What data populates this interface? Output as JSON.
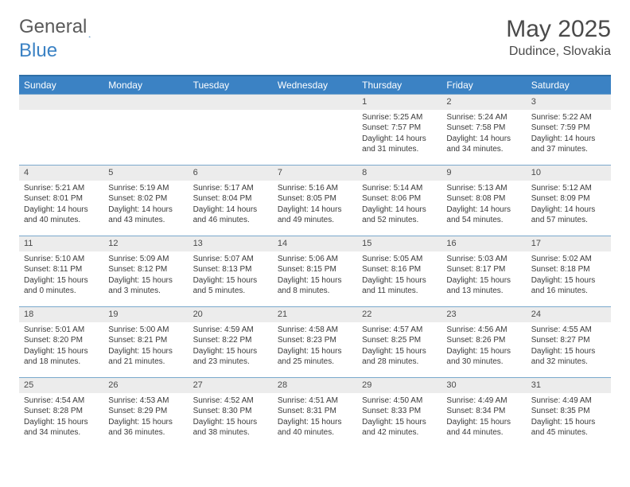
{
  "logo": {
    "text1": "General",
    "text2": "Blue"
  },
  "title": "May 2025",
  "location": "Dudince, Slovakia",
  "colors": {
    "header_blue": "#3b82c4",
    "row_divider": "#7aa8cc",
    "daynum_bg": "#ececec",
    "text": "#3a3a3a"
  },
  "dow": [
    "Sunday",
    "Monday",
    "Tuesday",
    "Wednesday",
    "Thursday",
    "Friday",
    "Saturday"
  ],
  "weeks": [
    [
      {
        "n": "",
        "lines": []
      },
      {
        "n": "",
        "lines": []
      },
      {
        "n": "",
        "lines": []
      },
      {
        "n": "",
        "lines": []
      },
      {
        "n": "1",
        "lines": [
          "Sunrise: 5:25 AM",
          "Sunset: 7:57 PM",
          "Daylight: 14 hours",
          "and 31 minutes."
        ]
      },
      {
        "n": "2",
        "lines": [
          "Sunrise: 5:24 AM",
          "Sunset: 7:58 PM",
          "Daylight: 14 hours",
          "and 34 minutes."
        ]
      },
      {
        "n": "3",
        "lines": [
          "Sunrise: 5:22 AM",
          "Sunset: 7:59 PM",
          "Daylight: 14 hours",
          "and 37 minutes."
        ]
      }
    ],
    [
      {
        "n": "4",
        "lines": [
          "Sunrise: 5:21 AM",
          "Sunset: 8:01 PM",
          "Daylight: 14 hours",
          "and 40 minutes."
        ]
      },
      {
        "n": "5",
        "lines": [
          "Sunrise: 5:19 AM",
          "Sunset: 8:02 PM",
          "Daylight: 14 hours",
          "and 43 minutes."
        ]
      },
      {
        "n": "6",
        "lines": [
          "Sunrise: 5:17 AM",
          "Sunset: 8:04 PM",
          "Daylight: 14 hours",
          "and 46 minutes."
        ]
      },
      {
        "n": "7",
        "lines": [
          "Sunrise: 5:16 AM",
          "Sunset: 8:05 PM",
          "Daylight: 14 hours",
          "and 49 minutes."
        ]
      },
      {
        "n": "8",
        "lines": [
          "Sunrise: 5:14 AM",
          "Sunset: 8:06 PM",
          "Daylight: 14 hours",
          "and 52 minutes."
        ]
      },
      {
        "n": "9",
        "lines": [
          "Sunrise: 5:13 AM",
          "Sunset: 8:08 PM",
          "Daylight: 14 hours",
          "and 54 minutes."
        ]
      },
      {
        "n": "10",
        "lines": [
          "Sunrise: 5:12 AM",
          "Sunset: 8:09 PM",
          "Daylight: 14 hours",
          "and 57 minutes."
        ]
      }
    ],
    [
      {
        "n": "11",
        "lines": [
          "Sunrise: 5:10 AM",
          "Sunset: 8:11 PM",
          "Daylight: 15 hours",
          "and 0 minutes."
        ]
      },
      {
        "n": "12",
        "lines": [
          "Sunrise: 5:09 AM",
          "Sunset: 8:12 PM",
          "Daylight: 15 hours",
          "and 3 minutes."
        ]
      },
      {
        "n": "13",
        "lines": [
          "Sunrise: 5:07 AM",
          "Sunset: 8:13 PM",
          "Daylight: 15 hours",
          "and 5 minutes."
        ]
      },
      {
        "n": "14",
        "lines": [
          "Sunrise: 5:06 AM",
          "Sunset: 8:15 PM",
          "Daylight: 15 hours",
          "and 8 minutes."
        ]
      },
      {
        "n": "15",
        "lines": [
          "Sunrise: 5:05 AM",
          "Sunset: 8:16 PM",
          "Daylight: 15 hours",
          "and 11 minutes."
        ]
      },
      {
        "n": "16",
        "lines": [
          "Sunrise: 5:03 AM",
          "Sunset: 8:17 PM",
          "Daylight: 15 hours",
          "and 13 minutes."
        ]
      },
      {
        "n": "17",
        "lines": [
          "Sunrise: 5:02 AM",
          "Sunset: 8:18 PM",
          "Daylight: 15 hours",
          "and 16 minutes."
        ]
      }
    ],
    [
      {
        "n": "18",
        "lines": [
          "Sunrise: 5:01 AM",
          "Sunset: 8:20 PM",
          "Daylight: 15 hours",
          "and 18 minutes."
        ]
      },
      {
        "n": "19",
        "lines": [
          "Sunrise: 5:00 AM",
          "Sunset: 8:21 PM",
          "Daylight: 15 hours",
          "and 21 minutes."
        ]
      },
      {
        "n": "20",
        "lines": [
          "Sunrise: 4:59 AM",
          "Sunset: 8:22 PM",
          "Daylight: 15 hours",
          "and 23 minutes."
        ]
      },
      {
        "n": "21",
        "lines": [
          "Sunrise: 4:58 AM",
          "Sunset: 8:23 PM",
          "Daylight: 15 hours",
          "and 25 minutes."
        ]
      },
      {
        "n": "22",
        "lines": [
          "Sunrise: 4:57 AM",
          "Sunset: 8:25 PM",
          "Daylight: 15 hours",
          "and 28 minutes."
        ]
      },
      {
        "n": "23",
        "lines": [
          "Sunrise: 4:56 AM",
          "Sunset: 8:26 PM",
          "Daylight: 15 hours",
          "and 30 minutes."
        ]
      },
      {
        "n": "24",
        "lines": [
          "Sunrise: 4:55 AM",
          "Sunset: 8:27 PM",
          "Daylight: 15 hours",
          "and 32 minutes."
        ]
      }
    ],
    [
      {
        "n": "25",
        "lines": [
          "Sunrise: 4:54 AM",
          "Sunset: 8:28 PM",
          "Daylight: 15 hours",
          "and 34 minutes."
        ]
      },
      {
        "n": "26",
        "lines": [
          "Sunrise: 4:53 AM",
          "Sunset: 8:29 PM",
          "Daylight: 15 hours",
          "and 36 minutes."
        ]
      },
      {
        "n": "27",
        "lines": [
          "Sunrise: 4:52 AM",
          "Sunset: 8:30 PM",
          "Daylight: 15 hours",
          "and 38 minutes."
        ]
      },
      {
        "n": "28",
        "lines": [
          "Sunrise: 4:51 AM",
          "Sunset: 8:31 PM",
          "Daylight: 15 hours",
          "and 40 minutes."
        ]
      },
      {
        "n": "29",
        "lines": [
          "Sunrise: 4:50 AM",
          "Sunset: 8:33 PM",
          "Daylight: 15 hours",
          "and 42 minutes."
        ]
      },
      {
        "n": "30",
        "lines": [
          "Sunrise: 4:49 AM",
          "Sunset: 8:34 PM",
          "Daylight: 15 hours",
          "and 44 minutes."
        ]
      },
      {
        "n": "31",
        "lines": [
          "Sunrise: 4:49 AM",
          "Sunset: 8:35 PM",
          "Daylight: 15 hours",
          "and 45 minutes."
        ]
      }
    ]
  ]
}
